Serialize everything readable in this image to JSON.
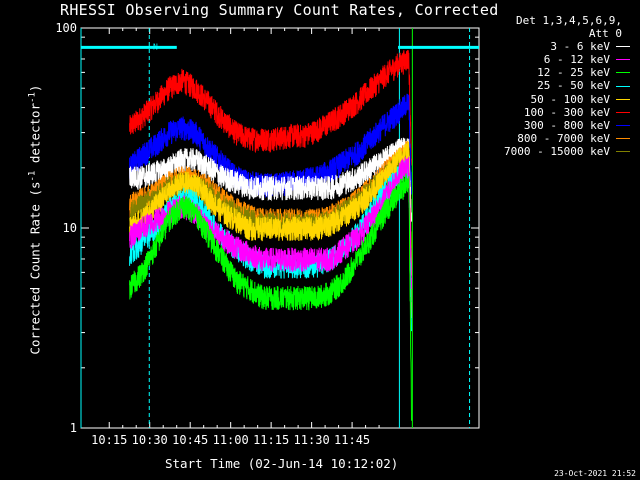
{
  "chart_data": {
    "type": "line",
    "title": "RHESSI Observing Summary Count Rates, Corrected",
    "xlabel": "Start Time (02-Jun-14 10:12:02)",
    "ylabel": "Corrected Count Rate (s⁻¹ detector⁻¹)",
    "ylabel_parts": {
      "main": "Corrected Count Rate (s",
      "sup1": "-1",
      "mid": " detector",
      "sup2": "-1",
      "end": ")"
    },
    "y_scale": "log",
    "ylim": [
      1,
      100
    ],
    "y_ticks": [
      "1",
      "10",
      "100"
    ],
    "xlim_minutes": [
      -7.5,
      140
    ],
    "x_ticks": [
      "10:15",
      "10:30",
      "10:45",
      "11:00",
      "11:15",
      "11:30",
      "11:45"
    ],
    "grid": false,
    "legend_position": "top-right (outside)",
    "legend_header": [
      "Det 1,3,4,5,6,9,",
      "Att 0"
    ],
    "annotation_n": "N",
    "series": [
      {
        "name": "3 - 6 keV",
        "color": "#ffffff",
        "x": [
          10.5,
          15,
          20,
          25,
          30,
          35,
          40,
          45,
          50,
          55,
          60,
          65,
          70,
          75,
          80,
          85,
          90,
          95,
          100,
          105,
          110,
          112,
          113,
          114,
          115
        ],
        "values": [
          18,
          18,
          19,
          20,
          22,
          22,
          20,
          18,
          17,
          16,
          16,
          16,
          16,
          16,
          16,
          16,
          17,
          18,
          20,
          22,
          25,
          25,
          25,
          25,
          10
        ]
      },
      {
        "name": "6 - 12 keV",
        "color": "#ff00ff",
        "x": [
          10.5,
          15,
          20,
          25,
          30,
          35,
          40,
          45,
          50,
          55,
          60,
          65,
          70,
          75,
          80,
          85,
          90,
          95,
          100,
          105,
          110,
          112,
          113,
          114,
          115
        ],
        "values": [
          9,
          10,
          11,
          12,
          13,
          12,
          10,
          9,
          8,
          7.5,
          7,
          7,
          7,
          7,
          7,
          7,
          8,
          9,
          11,
          14,
          18,
          20,
          20,
          20,
          5
        ]
      },
      {
        "name": "12 - 25 keV",
        "color": "#00ff00",
        "x": [
          10.5,
          15,
          20,
          25,
          30,
          35,
          40,
          45,
          50,
          55,
          60,
          65,
          70,
          75,
          80,
          85,
          90,
          95,
          100,
          105,
          110,
          112,
          113,
          114,
          115
        ],
        "values": [
          5,
          6,
          8,
          11,
          13,
          12,
          9,
          7,
          5.5,
          5,
          4.5,
          4.5,
          4.5,
          4.5,
          4.5,
          4.8,
          5.5,
          7,
          9,
          12,
          15,
          16,
          17,
          17,
          1.2
        ]
      },
      {
        "name": "25 - 50 keV",
        "color": "#00ffff",
        "x": [
          10.5,
          15,
          20,
          25,
          30,
          35,
          40,
          45,
          50,
          55,
          60,
          65,
          70,
          75,
          80,
          85,
          90,
          95,
          100,
          105,
          110,
          112,
          113,
          114,
          115
        ],
        "values": [
          7.5,
          8.5,
          10,
          12.5,
          14,
          13.5,
          11,
          9,
          8,
          7,
          6.5,
          6.5,
          6.5,
          6.5,
          6.5,
          7,
          8,
          9.5,
          12,
          15,
          18,
          19,
          20,
          20,
          3
        ]
      },
      {
        "name": "50 - 100 keV",
        "color": "#ffd700",
        "x": [
          10.5,
          15,
          20,
          25,
          30,
          35,
          40,
          45,
          50,
          55,
          60,
          65,
          70,
          75,
          80,
          85,
          90,
          95,
          100,
          105,
          110,
          112,
          113,
          114,
          115
        ],
        "values": [
          10,
          11,
          13,
          15,
          17,
          16.5,
          14,
          12,
          11,
          10,
          10,
          10,
          10,
          10,
          10,
          10.5,
          11.5,
          13,
          15,
          18,
          22,
          23,
          24,
          24,
          6
        ]
      },
      {
        "name": "100 - 300 keV",
        "color": "#ff0000",
        "x": [
          10.5,
          15,
          20,
          25,
          30,
          35,
          40,
          45,
          50,
          55,
          60,
          65,
          70,
          75,
          80,
          85,
          90,
          95,
          100,
          105,
          110,
          112,
          113,
          114,
          115
        ],
        "values": [
          32,
          36,
          42,
          50,
          55,
          50,
          42,
          35,
          30,
          28,
          28,
          28,
          29,
          29,
          31,
          34,
          38,
          43,
          50,
          58,
          66,
          68,
          70,
          70,
          20
        ]
      },
      {
        "name": "300 - 800 keV",
        "color": "#0000ff",
        "x": [
          10.5,
          15,
          20,
          25,
          30,
          35,
          40,
          45,
          50,
          55,
          60,
          65,
          70,
          75,
          80,
          85,
          90,
          95,
          100,
          105,
          110,
          112,
          113,
          114,
          115
        ],
        "values": [
          20,
          23,
          26,
          30,
          32,
          30,
          25,
          21,
          18,
          17,
          16.5,
          16.5,
          17,
          17.5,
          18,
          19.5,
          21.5,
          24,
          28,
          33,
          38,
          40,
          42,
          42,
          15
        ]
      },
      {
        "name": "800 - 7000 keV",
        "color": "#ff8c00",
        "x": [
          10.5,
          15,
          20,
          25,
          30,
          35,
          40,
          45,
          50,
          55,
          60,
          65,
          70,
          75,
          80,
          85,
          90,
          95,
          100,
          105,
          110,
          112,
          113,
          114,
          115
        ],
        "values": [
          13,
          14,
          15,
          17,
          18,
          17.5,
          16,
          14,
          12.5,
          11.5,
          11,
          11,
          11,
          11,
          11,
          11.5,
          12.5,
          14,
          16,
          19,
          22,
          23,
          24,
          24,
          4
        ]
      },
      {
        "name": "7000 - 15000 keV",
        "color": "#808000",
        "x": [
          10.5,
          15,
          20,
          25,
          30,
          35,
          40,
          45,
          50,
          55,
          60,
          65,
          70,
          75,
          80,
          85,
          90,
          95,
          100,
          105,
          110,
          112,
          113,
          114,
          115
        ],
        "values": [
          12,
          13,
          14,
          16,
          17,
          16.5,
          15,
          13,
          12,
          11,
          10.5,
          10.5,
          10.5,
          10.5,
          10.5,
          11,
          12,
          13.5,
          15.5,
          18,
          21,
          22,
          23,
          23,
          4
        ]
      }
    ],
    "saa_flags": {
      "color": "#00ffff",
      "level": 80,
      "intervals": [
        [
          -7.5,
          28
        ],
        [
          110,
          140
        ]
      ]
    },
    "vertical_markers": [
      {
        "x": -7.5,
        "style": "solid",
        "color": "#00ffff"
      },
      {
        "x": 17.8,
        "style": "dashed",
        "color": "#00ffff"
      },
      {
        "x": 110.5,
        "style": "solid",
        "color": "#00ffff"
      },
      {
        "x": 115.3,
        "style": "solid",
        "color": "#00ff00"
      },
      {
        "x": 136.5,
        "style": "dashed",
        "color": "#00ffff"
      }
    ]
  },
  "timestamp": "23-Oct-2021 21:52"
}
